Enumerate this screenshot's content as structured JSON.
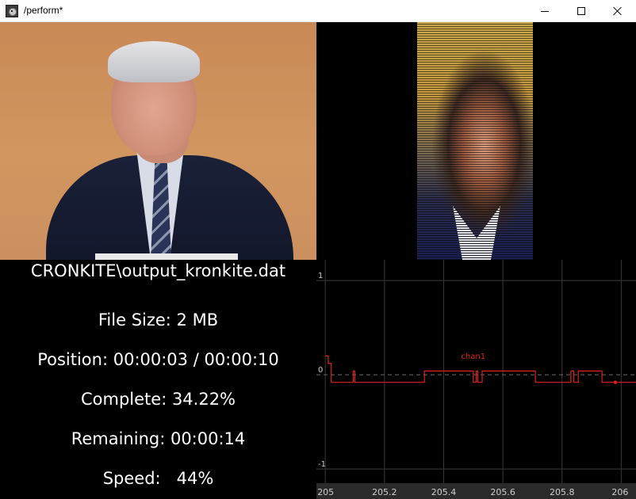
{
  "window": {
    "title": "/perform*",
    "icon": "app-icon",
    "controls": {
      "minimize": "minimize-icon",
      "maximize": "maximize-icon",
      "close": "close-icon"
    }
  },
  "info": {
    "file_path": "CRONKITE\\output_kronkite.dat",
    "file_size": "File Size: 2 MB",
    "position": "Position: 00:00:03 / 00:00:10",
    "complete": "Complete: 34.22%",
    "remaining": "Remaining: 00:00:14",
    "speed": "Speed:   44%"
  },
  "chart_data": {
    "type": "line",
    "series": [
      {
        "name": "chan1",
        "color": "#e0201a",
        "x": [
          205.0,
          205.01,
          205.01,
          205.02,
          205.02,
          205.095,
          205.095,
          205.1,
          205.1,
          205.1,
          205.1,
          205.335,
          205.335,
          205.5,
          205.5,
          205.51,
          205.51,
          205.515,
          205.515,
          205.53,
          205.53,
          205.545,
          205.545,
          205.71,
          205.71,
          205.83,
          205.83,
          205.84,
          205.84,
          205.855,
          205.855,
          205.86,
          205.86,
          205.935,
          205.935,
          205.98,
          206.05
        ],
        "y": [
          0.2,
          0.2,
          0.12,
          0.12,
          -0.08,
          -0.08,
          0.04,
          0.04,
          -0.08,
          -0.08,
          -0.08,
          -0.08,
          0.04,
          0.04,
          -0.08,
          -0.08,
          0.04,
          0.04,
          -0.08,
          -0.08,
          0.04,
          0.04,
          0.04,
          0.04,
          -0.08,
          -0.08,
          0.04,
          0.04,
          -0.08,
          -0.08,
          0.04,
          0.04,
          0.04,
          0.04,
          -0.08,
          -0.08,
          -0.08
        ]
      }
    ],
    "xlim": [
      204.97,
      206.05
    ],
    "ylim": [
      -1.15,
      1.22
    ],
    "x_ticks": [
      "205",
      "205.2",
      "205.4",
      "205.6",
      "205.8",
      "206"
    ],
    "y_ticks": [
      "1",
      "0",
      "-1"
    ],
    "grid": true,
    "zero_line": "dashed",
    "marker_x": 205.98,
    "colors": {
      "grid": "#3a3a3a",
      "tick_label": "#cfcfcf",
      "axis_bg": "#2a2a2a"
    }
  }
}
